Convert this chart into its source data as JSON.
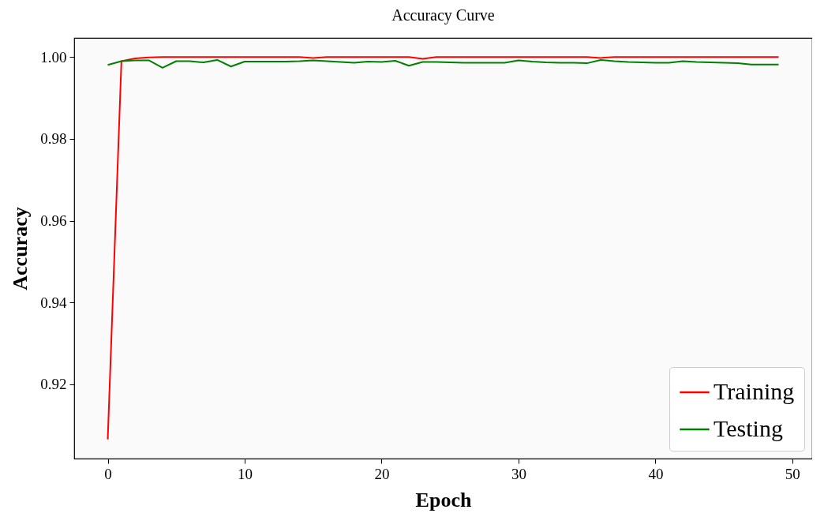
{
  "chart_data": {
    "type": "line",
    "title": "Accuracy Curve",
    "xlabel": "Epoch",
    "ylabel": "Accuracy",
    "x": [
      0,
      1,
      2,
      3,
      4,
      5,
      6,
      7,
      8,
      9,
      10,
      11,
      12,
      13,
      14,
      15,
      16,
      17,
      18,
      19,
      20,
      21,
      22,
      23,
      24,
      25,
      26,
      27,
      28,
      29,
      30,
      31,
      32,
      33,
      34,
      35,
      36,
      37,
      38,
      39,
      40,
      41,
      42,
      43,
      44,
      45,
      46,
      47,
      48,
      49
    ],
    "series": [
      {
        "name": "Training",
        "color": "#ff0000",
        "values": [
          0.9065,
          0.999,
          0.9997,
          0.9999,
          1.0,
          1.0,
          1.0,
          1.0,
          1.0,
          1.0,
          1.0,
          1.0,
          1.0,
          1.0,
          1.0,
          0.9998,
          1.0,
          1.0,
          1.0,
          1.0,
          1.0,
          1.0,
          1.0,
          0.9996,
          1.0,
          1.0,
          1.0,
          1.0,
          1.0,
          1.0,
          1.0,
          1.0,
          1.0,
          1.0,
          1.0,
          1.0,
          0.9998,
          1.0,
          1.0,
          1.0,
          1.0,
          1.0,
          1.0,
          1.0,
          1.0,
          1.0,
          1.0,
          1.0,
          1.0,
          1.0
        ]
      },
      {
        "name": "Testing",
        "color": "#008000",
        "values": [
          0.9981,
          0.999,
          0.9992,
          0.9992,
          0.9974,
          0.999,
          0.999,
          0.9987,
          0.9993,
          0.9977,
          0.9989,
          0.9989,
          0.9989,
          0.9989,
          0.999,
          0.9992,
          0.999,
          0.9988,
          0.9986,
          0.9989,
          0.9988,
          0.9991,
          0.9979,
          0.9988,
          0.9988,
          0.9987,
          0.9986,
          0.9986,
          0.9986,
          0.9986,
          0.9992,
          0.9989,
          0.9987,
          0.9986,
          0.9986,
          0.9985,
          0.9993,
          0.999,
          0.9988,
          0.9987,
          0.9986,
          0.9986,
          0.999,
          0.9988,
          0.9987,
          0.9986,
          0.9985,
          0.9982,
          0.9982,
          0.9982
        ]
      }
    ],
    "xlim": [
      -2.45,
      51.45
    ],
    "xticks": [
      0,
      10,
      20,
      30,
      40,
      50
    ],
    "ylim": [
      0.9018,
      1.0047
    ],
    "yticks": [
      {
        "value": 0.92,
        "label": "0.92"
      },
      {
        "value": 0.94,
        "label": "0.94"
      },
      {
        "value": 0.96,
        "label": "0.96"
      },
      {
        "value": 0.98,
        "label": "0.98"
      },
      {
        "value": 1.0,
        "label": "1.00"
      }
    ],
    "legend": "bottom right",
    "grid": false
  }
}
